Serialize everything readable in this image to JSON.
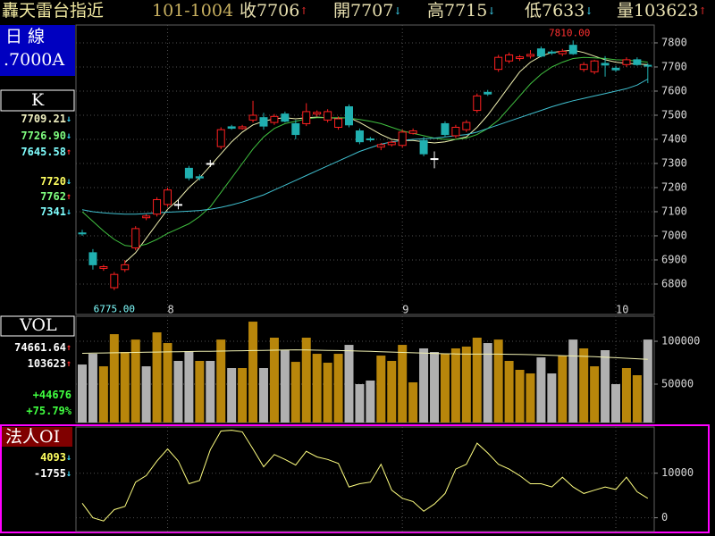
{
  "header": {
    "title": "轟天雷台指近",
    "code": "101-1004",
    "quotes": [
      {
        "text": "收7706",
        "arrow": "↑"
      },
      {
        "text": "開7707",
        "arrow": "↓"
      },
      {
        "text": "高7715",
        "arrow": "↓"
      },
      {
        "text": "低7633",
        "arrow": "↓"
      },
      {
        "text": "量103623",
        "arrow": "↑"
      }
    ]
  },
  "sidebar": {
    "period": "日 線",
    "base": ".7000A",
    "k_label": "K",
    "k_values": [
      {
        "text": "7709.21",
        "arrow": "↓",
        "color": "#f0f0c0"
      },
      {
        "text": "7726.90",
        "arrow": "↓",
        "color": "#80ff80"
      },
      {
        "text": "7645.58",
        "arrow": "↑",
        "color": "#80ffff"
      },
      {
        "text": "7720",
        "arrow": "↓",
        "color": "#ffff60"
      },
      {
        "text": "7762",
        "arrow": "↑",
        "color": "#80ff80"
      },
      {
        "text": "7341",
        "arrow": "↓",
        "color": "#80ffff"
      }
    ],
    "vol_label": "VOL",
    "vol_values": [
      {
        "text": "74661.64",
        "arrow": "↑",
        "color": "#ffffff"
      },
      {
        "text": "103623",
        "arrow": "↑",
        "color": "#ffffff"
      },
      {
        "text": "+44676",
        "arrow": "",
        "color": "#40ff40"
      },
      {
        "text": "+75.79%",
        "arrow": "",
        "color": "#40ff40"
      }
    ],
    "oi_label": "法人OI",
    "oi_values": [
      {
        "text": "4093",
        "arrow": "↓",
        "color": "#ffff60"
      },
      {
        "text": "-1755",
        "arrow": "↓",
        "color": "#ffffff"
      }
    ]
  },
  "chart_data": [
    {
      "type": "candlestick",
      "ylim": [
        6674,
        7874
      ],
      "yticks": [
        6800,
        6900,
        7000,
        7100,
        7200,
        7300,
        7400,
        7500,
        7600,
        7700,
        7800
      ],
      "grid": true,
      "categories": [
        null,
        null,
        null,
        null,
        null,
        null,
        null,
        null,
        "8",
        null,
        null,
        null,
        null,
        null,
        null,
        null,
        null,
        null,
        null,
        null,
        null,
        null,
        null,
        null,
        null,
        null,
        null,
        null,
        null,
        null,
        "9",
        null,
        null,
        null,
        null,
        null,
        null,
        null,
        null,
        null,
        null,
        null,
        null,
        null,
        null,
        null,
        null,
        null,
        null,
        null,
        "10",
        null,
        null,
        null
      ],
      "open": [
        7012,
        6930,
        6865,
        6785,
        6860,
        6950,
        7075,
        7090,
        7130,
        7130,
        7280,
        7245,
        7300,
        7370,
        7452,
        7445,
        7480,
        7490,
        7470,
        7505,
        7465,
        7465,
        7505,
        7480,
        7450,
        7535,
        7435,
        7402,
        7368,
        7378,
        7375,
        7425,
        7395,
        7320,
        7465,
        7415,
        7440,
        7520,
        7595,
        7690,
        7725,
        7735,
        7745,
        7775,
        7762,
        7755,
        7790,
        7690,
        7680,
        7715,
        7695,
        7710,
        7730,
        7707
      ],
      "high": [
        7025,
        6945,
        6880,
        6850,
        6900,
        7040,
        7090,
        7160,
        7200,
        7150,
        7290,
        7255,
        7315,
        7450,
        7460,
        7460,
        7560,
        7510,
        7505,
        7515,
        7480,
        7550,
        7520,
        7525,
        7495,
        7545,
        7445,
        7410,
        7385,
        7395,
        7440,
        7445,
        7410,
        7350,
        7475,
        7460,
        7480,
        7590,
        7605,
        7750,
        7760,
        7750,
        7770,
        7785,
        7770,
        7775,
        7810,
        7720,
        7730,
        7745,
        7705,
        7740,
        7740,
        7715
      ],
      "low": [
        7000,
        6860,
        6855,
        6775,
        6850,
        6940,
        7065,
        7080,
        7120,
        7110,
        7230,
        7230,
        7285,
        7360,
        7440,
        7440,
        7470,
        7440,
        7460,
        7470,
        7400,
        7455,
        7495,
        7470,
        7440,
        7450,
        7380,
        7390,
        7355,
        7370,
        7365,
        7420,
        7330,
        7280,
        7410,
        7405,
        7430,
        7510,
        7580,
        7680,
        7715,
        7725,
        7735,
        7740,
        7750,
        7745,
        7750,
        7680,
        7670,
        7660,
        7680,
        7700,
        7705,
        7633
      ],
      "close": [
        7008,
        6880,
        6872,
        6840,
        6880,
        7030,
        7082,
        7150,
        7190,
        7130,
        7240,
        7240,
        7300,
        7440,
        7446,
        7452,
        7500,
        7455,
        7495,
        7475,
        7420,
        7515,
        7512,
        7515,
        7485,
        7460,
        7390,
        7398,
        7378,
        7388,
        7430,
        7435,
        7340,
        7320,
        7420,
        7450,
        7470,
        7580,
        7588,
        7740,
        7750,
        7742,
        7752,
        7745,
        7758,
        7765,
        7755,
        7710,
        7725,
        7708,
        7688,
        7730,
        7710,
        7706
      ],
      "up_color": "#ff2020",
      "down_color": "#20b0b0",
      "flat_color": "#ffffff",
      "high_label": "7810.00",
      "high_label_color": "#ff3030",
      "low_label": "6775.00",
      "low_label_color": "#80ffff",
      "lines": [
        {
          "color": "#f0f0b0",
          "values": [
            null,
            null,
            null,
            null,
            6890,
            6930,
            6990,
            7050,
            7110,
            7150,
            7200,
            7240,
            7290,
            7340,
            7390,
            7430,
            7460,
            7475,
            7485,
            7490,
            7485,
            7490,
            7492,
            7490,
            7488,
            7490,
            7470,
            7445,
            7420,
            7400,
            7395,
            7395,
            7390,
            7385,
            7390,
            7400,
            7410,
            7450,
            7500,
            7560,
            7620,
            7680,
            7720,
            7745,
            7760,
            7765,
            7770,
            7760,
            7745,
            7730,
            7720,
            7715,
            7712,
            7710
          ]
        },
        {
          "color": "#40c040",
          "values": [
            7100,
            7060,
            7020,
            6985,
            6960,
            6955,
            6965,
            6985,
            7010,
            7030,
            7050,
            7080,
            7120,
            7180,
            7240,
            7300,
            7360,
            7410,
            7445,
            7465,
            7475,
            7485,
            7490,
            7490,
            7490,
            7488,
            7482,
            7475,
            7465,
            7450,
            7435,
            7425,
            7415,
            7405,
            7400,
            7400,
            7405,
            7420,
            7445,
            7480,
            7530,
            7580,
            7630,
            7670,
            7700,
            7720,
            7735,
            7740,
            7738,
            7735,
            7730,
            7728,
            7725,
            7720
          ]
        },
        {
          "color": "#40c0d0",
          "values": [
            7108,
            7100,
            7095,
            7092,
            7090,
            7090,
            7092,
            7095,
            7098,
            7100,
            7102,
            7105,
            7110,
            7118,
            7128,
            7140,
            7155,
            7170,
            7190,
            7210,
            7230,
            7250,
            7270,
            7290,
            7310,
            7330,
            7350,
            7365,
            7380,
            7390,
            7395,
            7400,
            7402,
            7405,
            7410,
            7415,
            7420,
            7430,
            7445,
            7460,
            7475,
            7490,
            7505,
            7520,
            7535,
            7548,
            7560,
            7570,
            7580,
            7590,
            7600,
            7610,
            7625,
            7650
          ]
        }
      ]
    },
    {
      "type": "bar",
      "ylim": [
        5200,
        129200
      ],
      "yticks": [
        50000,
        100000
      ],
      "grid": true,
      "values": [
        72900,
        85400,
        70800,
        108300,
        87500,
        102000,
        70800,
        110400,
        97900,
        77100,
        88500,
        77100,
        77100,
        102000,
        68750,
        68750,
        122900,
        68750,
        104200,
        89600,
        76000,
        104200,
        85400,
        75000,
        85400,
        95800,
        50000,
        54200,
        83300,
        77100,
        95800,
        52100,
        91700,
        87500,
        85400,
        91700,
        93800,
        104200,
        97900,
        102000,
        77100,
        66700,
        62500,
        81200,
        62500,
        83300,
        102000,
        91700,
        70800,
        89600,
        50000,
        68750,
        60400,
        102000
      ],
      "colors": [
        "#b0b0b0",
        "#b0b0b0",
        "#b8860b",
        "#b8860b",
        "#b8860b",
        "#b8860b",
        "#b0b0b0",
        "#b8860b",
        "#b8860b",
        "#b0b0b0",
        "#b0b0b0",
        "#b8860b",
        "#b0b0b0",
        "#b8860b",
        "#b0b0b0",
        "#b8860b",
        "#b8860b",
        "#b0b0b0",
        "#b8860b",
        "#b0b0b0",
        "#b8860b",
        "#b8860b",
        "#b8860b",
        "#b8860b",
        "#b8860b",
        "#b0b0b0",
        "#b0b0b0",
        "#b0b0b0",
        "#b8860b",
        "#b8860b",
        "#b8860b",
        "#b8860b",
        "#b0b0b0",
        "#b0b0b0",
        "#b8860b",
        "#b8860b",
        "#b8860b",
        "#b8860b",
        "#b0b0b0",
        "#b8860b",
        "#b8860b",
        "#b8860b",
        "#b8860b",
        "#b0b0b0",
        "#b0b0b0",
        "#b8860b",
        "#b0b0b0",
        "#b8860b",
        "#b8860b",
        "#b0b0b0",
        "#b0b0b0",
        "#b8860b",
        "#b8860b",
        "#b0b0b0"
      ],
      "line": {
        "color": "#f0f0b0",
        "values": [
          86000,
          86200,
          86400,
          86600,
          86800,
          87000,
          87200,
          87400,
          87600,
          87800,
          88000,
          88200,
          88400,
          88600,
          88800,
          89000,
          89200,
          89400,
          89600,
          89800,
          90000,
          89800,
          89600,
          89400,
          89200,
          89000,
          88600,
          88200,
          87800,
          87400,
          87000,
          86600,
          86200,
          85800,
          85400,
          85200,
          85000,
          85000,
          85000,
          85000,
          84800,
          84600,
          84400,
          84000,
          83600,
          83200,
          82800,
          82400,
          82000,
          81400,
          80800,
          80200,
          79600,
          79000
        ]
      }
    },
    {
      "type": "line",
      "ylim": [
        -3090,
        20360
      ],
      "yticks": [
        0,
        10000
      ],
      "grid": true,
      "color": "#ffff80",
      "values": [
        3270,
        0,
        -730,
        1820,
        2550,
        8000,
        9450,
        12730,
        15450,
        12730,
        7640,
        8360,
        15270,
        19450,
        19640,
        19270,
        15450,
        11450,
        14180,
        13090,
        11820,
        14910,
        13640,
        13090,
        12180,
        6910,
        7640,
        8000,
        12000,
        6180,
        4360,
        3640,
        1450,
        3090,
        5450,
        10910,
        12000,
        16730,
        14550,
        12000,
        10910,
        9450,
        7640,
        7640,
        6910,
        9090,
        6910,
        5450,
        6180,
        6910,
        6360,
        9090,
        5820,
        4360
      ]
    }
  ]
}
